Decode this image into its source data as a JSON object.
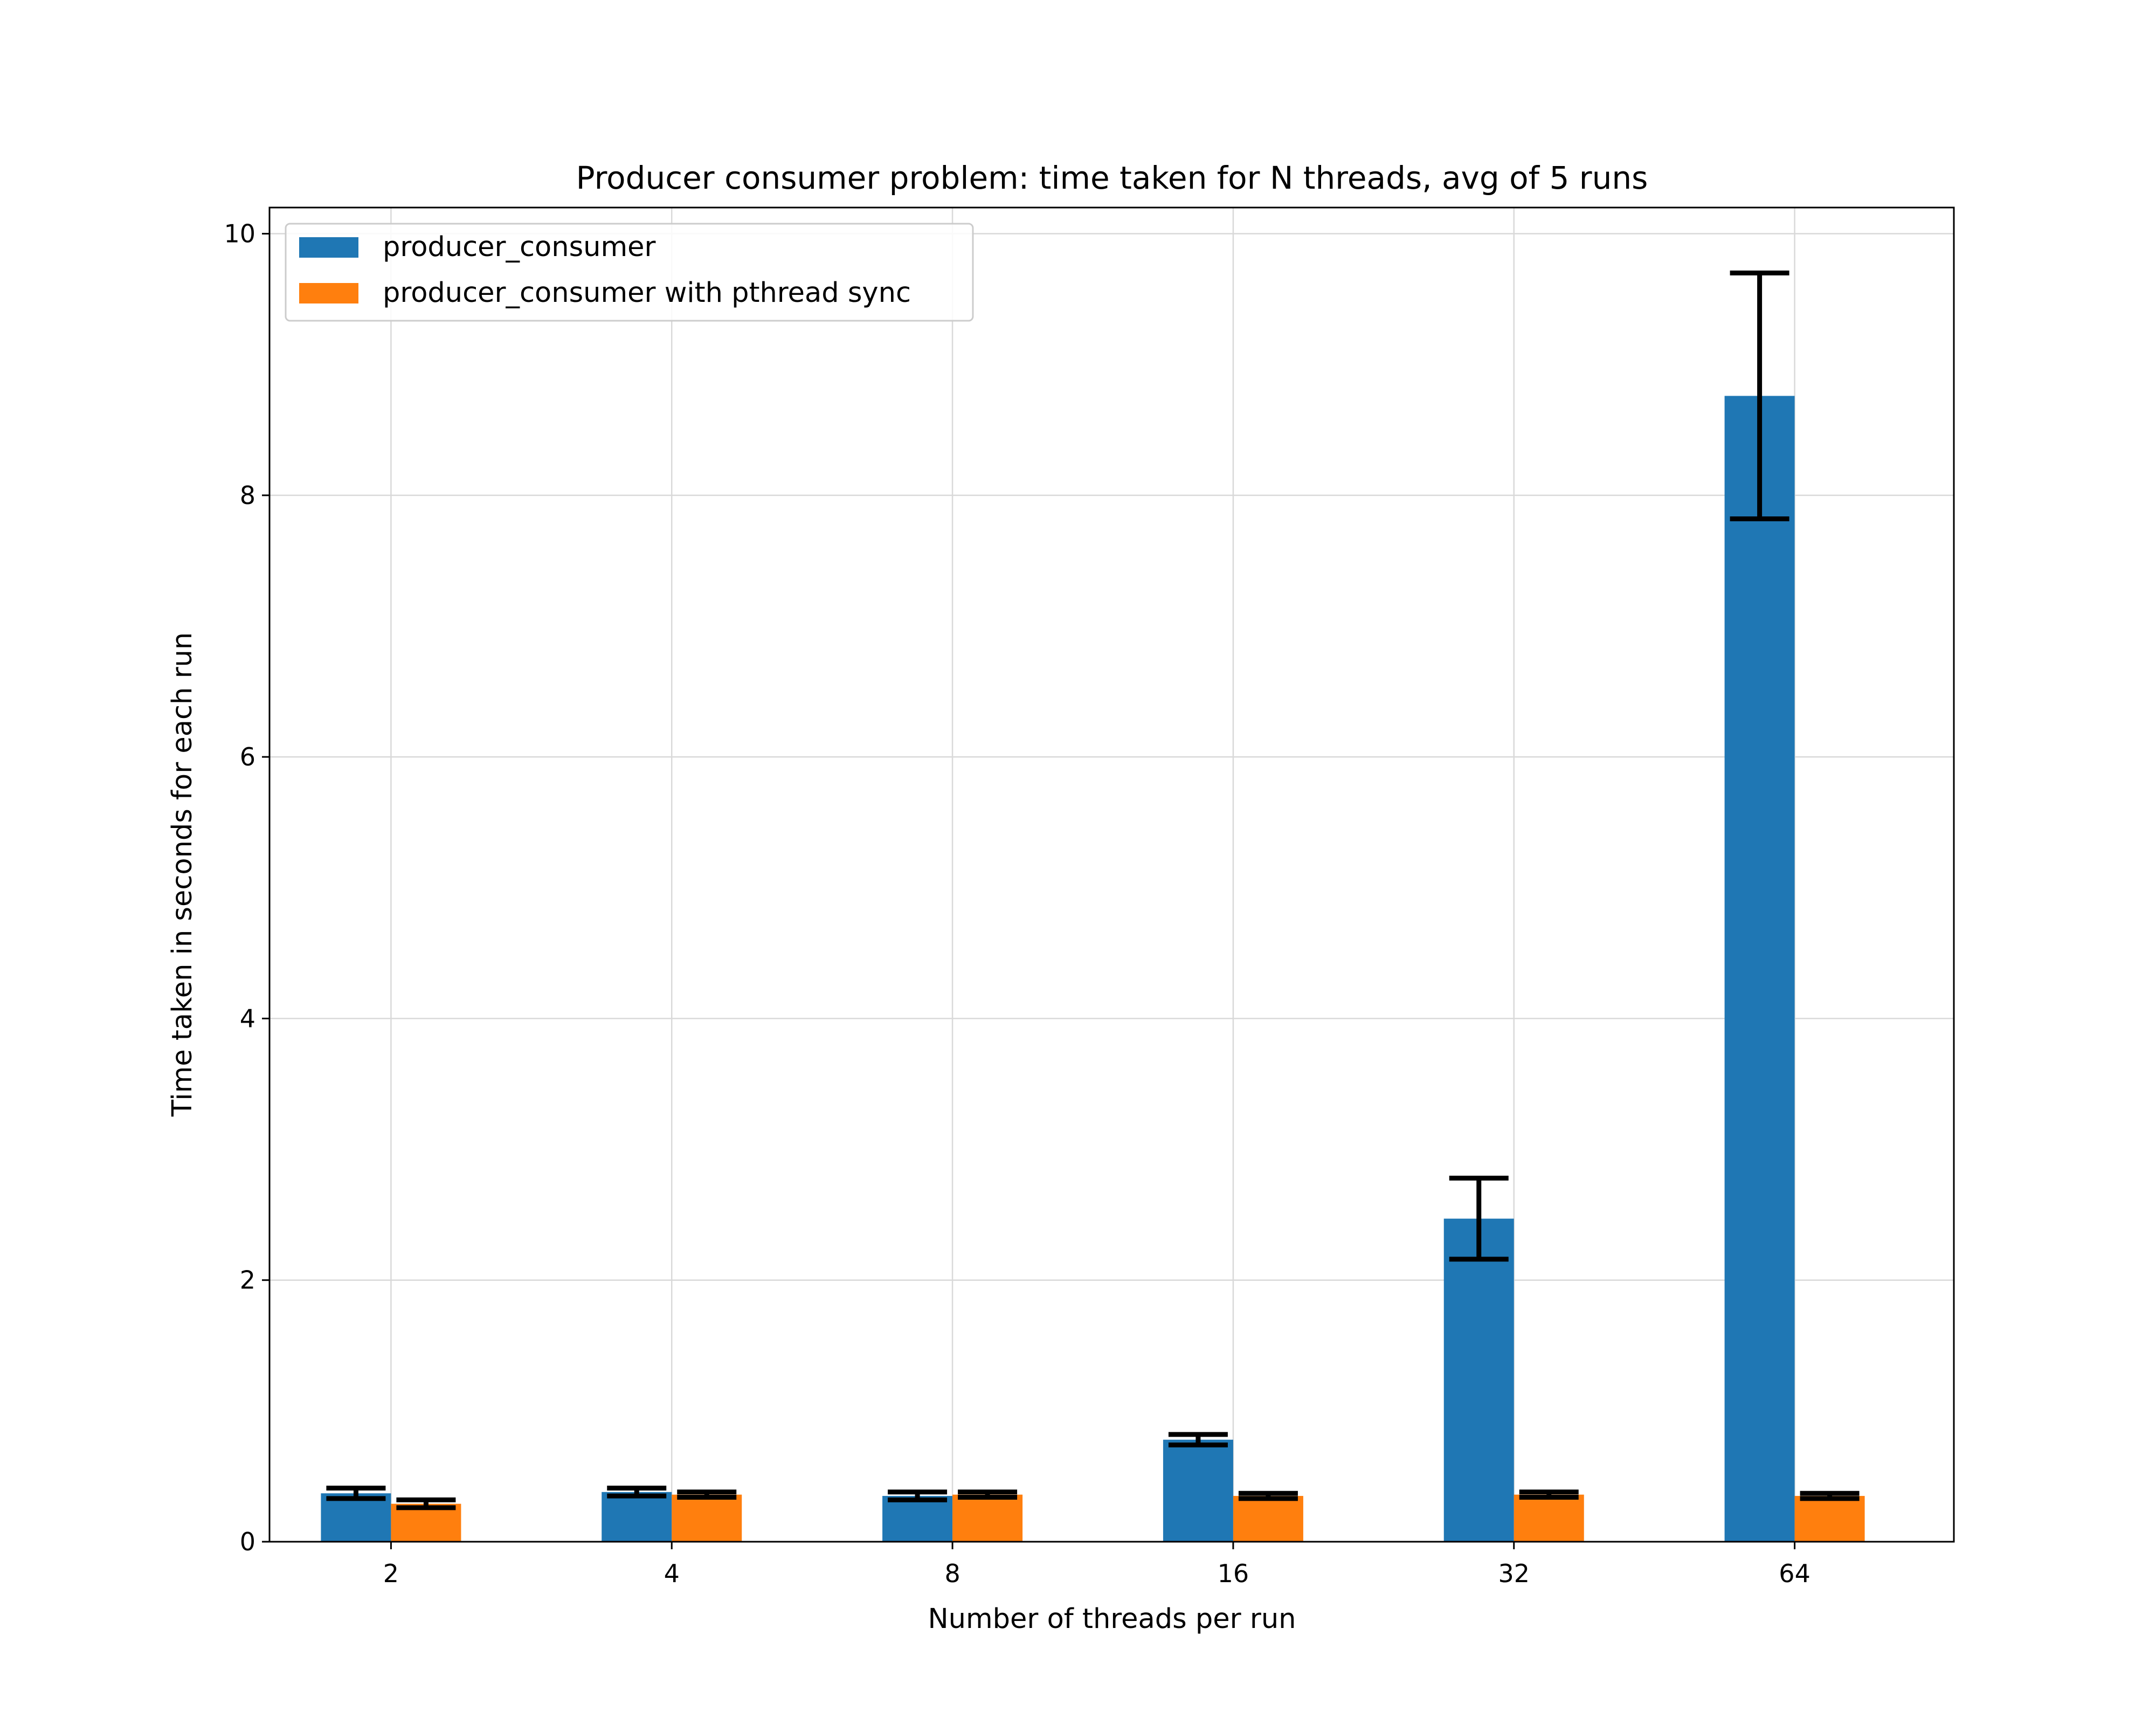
{
  "chart_data": {
    "type": "bar",
    "title": "Producer consumer problem: time taken for N threads, avg of 5 runs",
    "xlabel": "Number of threads per run",
    "ylabel": "Time taken in seconds for each run",
    "categories": [
      "2",
      "4",
      "8",
      "16",
      "32",
      "64"
    ],
    "series": [
      {
        "name": "producer_consumer",
        "color": "#1f77b4",
        "values": [
          0.37,
          0.38,
          0.35,
          0.78,
          2.47,
          8.76
        ],
        "errors": [
          0.04,
          0.03,
          0.03,
          0.04,
          0.31,
          0.94
        ]
      },
      {
        "name": "producer_consumer with pthread sync",
        "color": "#ff7f0e",
        "values": [
          0.29,
          0.36,
          0.36,
          0.35,
          0.36,
          0.35
        ],
        "errors": [
          0.03,
          0.02,
          0.02,
          0.02,
          0.02,
          0.02
        ]
      }
    ],
    "ylim": [
      0,
      10.2
    ],
    "yticks": [
      "0",
      "2",
      "4",
      "6",
      "8",
      "10"
    ],
    "grid": true,
    "legend": "top-left"
  }
}
